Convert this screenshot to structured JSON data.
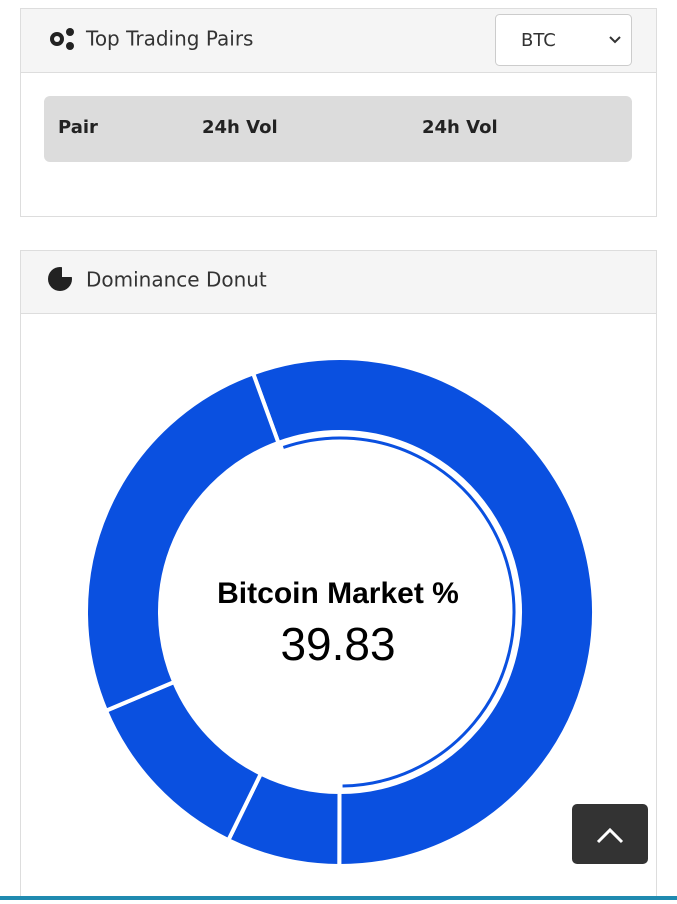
{
  "trading_pairs": {
    "title": "Top Trading Pairs",
    "select": "BTC",
    "columns": [
      "Pair",
      "24h Vol",
      "24h Vol"
    ]
  },
  "dominance": {
    "title": "Dominance Donut"
  },
  "chart_data": {
    "type": "donut",
    "center_label": "Bitcoin Market %",
    "center_value": 39.83,
    "values": [
      55.6,
      7.2,
      11.4,
      25.8
    ],
    "color": "#0a50e0"
  }
}
